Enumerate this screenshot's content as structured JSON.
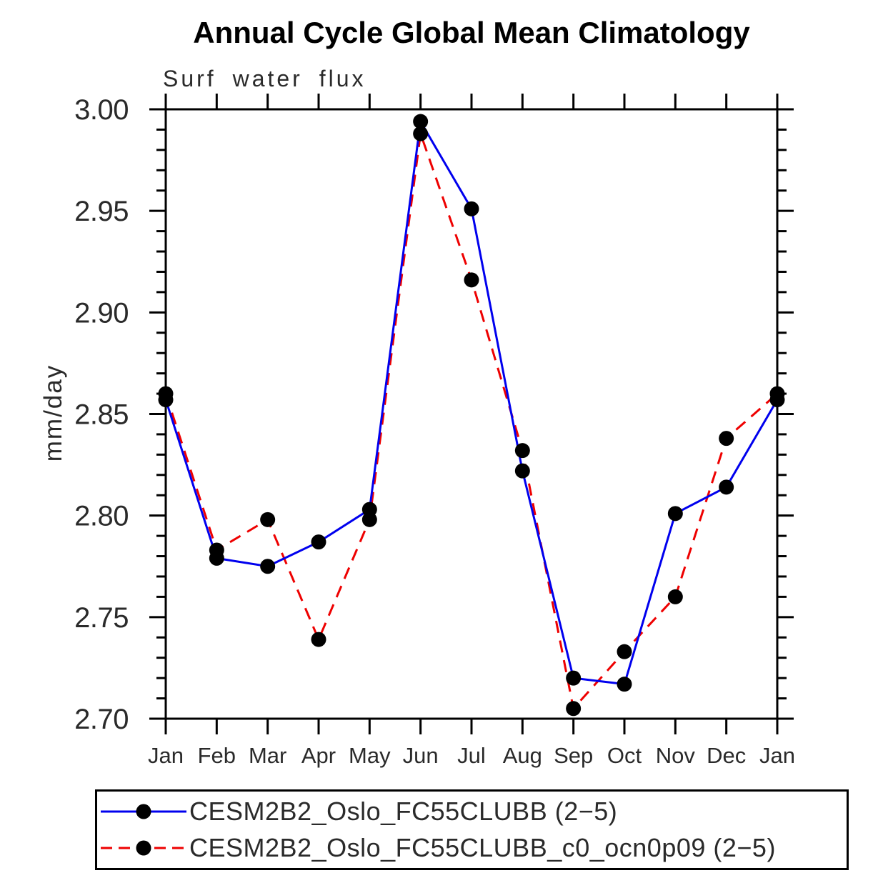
{
  "chart_data": {
    "type": "line",
    "title": "Annual Cycle Global Mean Climatology",
    "subtitle": "Surf water flux",
    "xlabel": "",
    "ylabel": "mm/day",
    "categories": [
      "Jan",
      "Feb",
      "Mar",
      "Apr",
      "May",
      "Jun",
      "Jul",
      "Aug",
      "Sep",
      "Oct",
      "Nov",
      "Dec",
      "Jan"
    ],
    "ylim": [
      2.7,
      3.0
    ],
    "ytick_labels": [
      "3.00",
      "2.95",
      "2.90",
      "2.85",
      "2.80",
      "2.75",
      "2.70"
    ],
    "ytick_step": 0.05,
    "ytick_minor_step": 0.01,
    "grid": false,
    "legend_position": "bottom-box",
    "marker": "filled-circle",
    "marker_color": "#000000",
    "axis_color": "#000000",
    "text_color": "#2a2a2a",
    "series": [
      {
        "name": "CESM2B2_Oslo_FC55CLUBB (2−5)",
        "color": "#0000ee",
        "style": "solid",
        "values": [
          2.857,
          2.779,
          2.775,
          2.787,
          2.803,
          2.994,
          2.951,
          2.822,
          2.72,
          2.717,
          2.801,
          2.814,
          2.857
        ]
      },
      {
        "name": "CESM2B2_Oslo_FC55CLUBB_c0_ocn0p09 (2−5)",
        "color": "#ee0000",
        "style": "dashed",
        "values": [
          2.86,
          2.783,
          2.798,
          2.739,
          2.798,
          2.988,
          2.916,
          2.832,
          2.705,
          2.733,
          2.76,
          2.838,
          2.86
        ]
      }
    ]
  }
}
